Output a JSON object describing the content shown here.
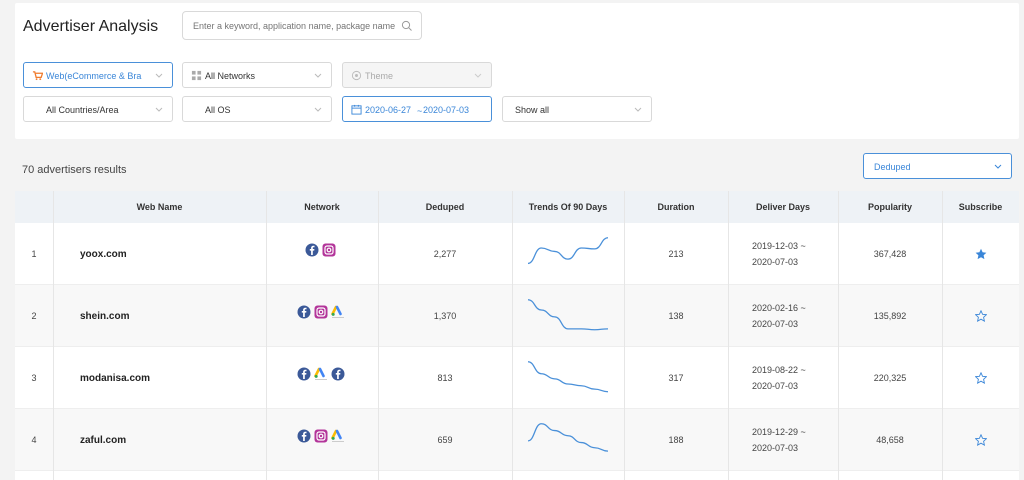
{
  "header": {
    "title": "Advertiser Analysis",
    "search_placeholder": "Enter a keyword, application name, package name"
  },
  "filters": {
    "category": "Web(eCommerce & Bra",
    "network": "All Networks",
    "theme": "Theme",
    "country": "All Countries/Area",
    "os": "All OS",
    "date_from": "2020-06-27",
    "date_sep": "~",
    "date_to": "2020-07-03",
    "show": "Show all"
  },
  "results": {
    "count_text": "70 advertisers results",
    "dedup": "Deduped"
  },
  "colors": {
    "accent": "#3a86d8",
    "facebook": "#3b5998",
    "instagram": "#b3359a"
  },
  "table": {
    "headers": [
      "Web Name",
      "Network",
      "Deduped",
      "Trends Of 90 Days",
      "Duration",
      "Deliver Days",
      "Popularity",
      "Subscribe"
    ],
    "rows": [
      {
        "index": "1",
        "name": "yoox.com",
        "networks": [
          "facebook-icon",
          "instagram-icon"
        ],
        "deduped": "2,277",
        "trend": [
          10,
          28,
          24,
          15,
          28,
          27,
          40
        ],
        "duration": "213",
        "start": "2019-12-03 ~",
        "end": "2020-07-03",
        "popularity": "367,428",
        "subscribed": true
      },
      {
        "index": "2",
        "name": "shein.com",
        "networks": [
          "facebook-icon",
          "instagram-icon",
          "google-ads-icon"
        ],
        "deduped": "1,370",
        "trend": [
          40,
          28,
          20,
          6,
          6,
          5,
          6
        ],
        "duration": "138",
        "start": "2020-02-16 ~",
        "end": "2020-07-03",
        "popularity": "135,892",
        "subscribed": false
      },
      {
        "index": "3",
        "name": "modanisa.com",
        "networks": [
          "facebook-icon",
          "google-ads-icon",
          "facebook-icon"
        ],
        "deduped": "813",
        "trend": [
          40,
          26,
          20,
          14,
          12,
          8,
          5
        ],
        "duration": "317",
        "start": "2019-08-22 ~",
        "end": "2020-07-03",
        "popularity": "220,325",
        "subscribed": false
      },
      {
        "index": "4",
        "name": "zaful.com",
        "networks": [
          "facebook-icon",
          "instagram-icon",
          "google-ads-icon"
        ],
        "deduped": "659",
        "trend": [
          20,
          40,
          32,
          26,
          18,
          12,
          8
        ],
        "duration": "188",
        "start": "2019-12-29 ~",
        "end": "2020-07-03",
        "popularity": "48,658",
        "subscribed": false
      }
    ]
  }
}
